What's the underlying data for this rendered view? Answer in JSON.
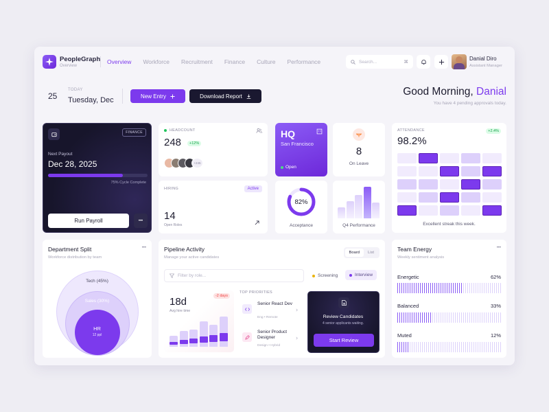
{
  "app": {
    "name": "PeopleGraph",
    "subtitle": "Overview"
  },
  "nav": [
    "Overview",
    "Workforce",
    "Recruitment",
    "Finance",
    "Culture",
    "Performance"
  ],
  "search": {
    "placeholder": "Search...",
    "shortcut": "⌘"
  },
  "user": {
    "name": "Danial Diro",
    "role": "Assistant Manager"
  },
  "date": {
    "day": "25",
    "label": "TODAY",
    "weekday": "Tuesday, Dec"
  },
  "actions": {
    "new_entry": "New Entry",
    "download": "Download Report"
  },
  "greeting": {
    "prefix": "Good Morning,",
    "name": "Danial",
    "sub": "You have 4 pending approvals today."
  },
  "payroll": {
    "tag": "FINANCE",
    "label": "Next Payout",
    "date": "Dec 28, 2025",
    "progress_pct": 75,
    "progress_text": "75% Cycle Complete",
    "run": "Run Payroll",
    "more": "•••"
  },
  "headcount": {
    "label": "HEADCOUNT",
    "value": "248",
    "delta": "+12%",
    "more": "+245"
  },
  "hq": {
    "title": "HQ",
    "city": "San Francisco",
    "status": "Open"
  },
  "leave": {
    "value": "8",
    "label": "On Leave"
  },
  "attendance": {
    "label": "ATTENDANCE",
    "value": "98.2%",
    "delta": "+2.4%",
    "note": "Excellent streak this week.",
    "grid": [
      [
        1,
        3,
        1,
        2,
        1
      ],
      [
        1,
        1,
        3,
        2,
        3
      ],
      [
        2,
        2,
        1,
        3,
        2
      ],
      [
        1,
        2,
        3,
        2,
        1
      ],
      [
        3,
        1,
        2,
        1,
        3
      ]
    ]
  },
  "hiring": {
    "label": "HIRING",
    "status": "Active",
    "value": "14",
    "sub": "Open Roles"
  },
  "acceptance": {
    "value": "82%",
    "pct": 82,
    "label": "Acceptance"
  },
  "q4": {
    "label": "Q4 Performance",
    "bars": [
      0.35,
      0.55,
      0.75,
      1.0,
      0.5
    ]
  },
  "department": {
    "title": "Department Split",
    "sub": "Workforce distribution by team",
    "more": "•••",
    "tech": "Tech (45%)",
    "sales": "Sales (30%)",
    "hr": "HR",
    "hr_sub": "12 ppl"
  },
  "pipeline": {
    "title": "Pipeline Activity",
    "sub": "Manage your active candidates",
    "board": "Board",
    "list": "List",
    "filter_placeholder": "Filter by role...",
    "screening": "Screening",
    "interview": "Interview",
    "avg_value": "18d",
    "avg_label": "Avg hire time",
    "avg_delta": "-2 days",
    "hire_bars": [
      [
        0.35,
        0.15
      ],
      [
        0.5,
        0.2
      ],
      [
        0.55,
        0.25
      ],
      [
        0.8,
        0.3
      ],
      [
        0.7,
        0.35
      ],
      [
        0.95,
        0.4
      ]
    ],
    "priorities_label": "TOP PRIORITIES",
    "priorities": [
      {
        "title": "Senior React Dev",
        "meta": "Eng • Remote"
      },
      {
        "title": "Senior Product Designer",
        "meta": "Design • Hybrid"
      }
    ],
    "review_title": "Review Candidates",
    "review_sub": "4 senior applicants waiting.",
    "review_btn": "Start Review"
  },
  "energy": {
    "title": "Team Energy",
    "sub": "Weekly sentiment analysis",
    "more": "•••",
    "items": [
      {
        "label": "Energetic",
        "pct": "62%",
        "value": 62
      },
      {
        "label": "Balanced",
        "pct": "33%",
        "value": 33
      },
      {
        "label": "Muted",
        "pct": "12%",
        "value": 12
      }
    ]
  },
  "colors": {
    "accent": "#7c3aed",
    "dark": "#1a1830",
    "bg": "#f5f4f9"
  }
}
